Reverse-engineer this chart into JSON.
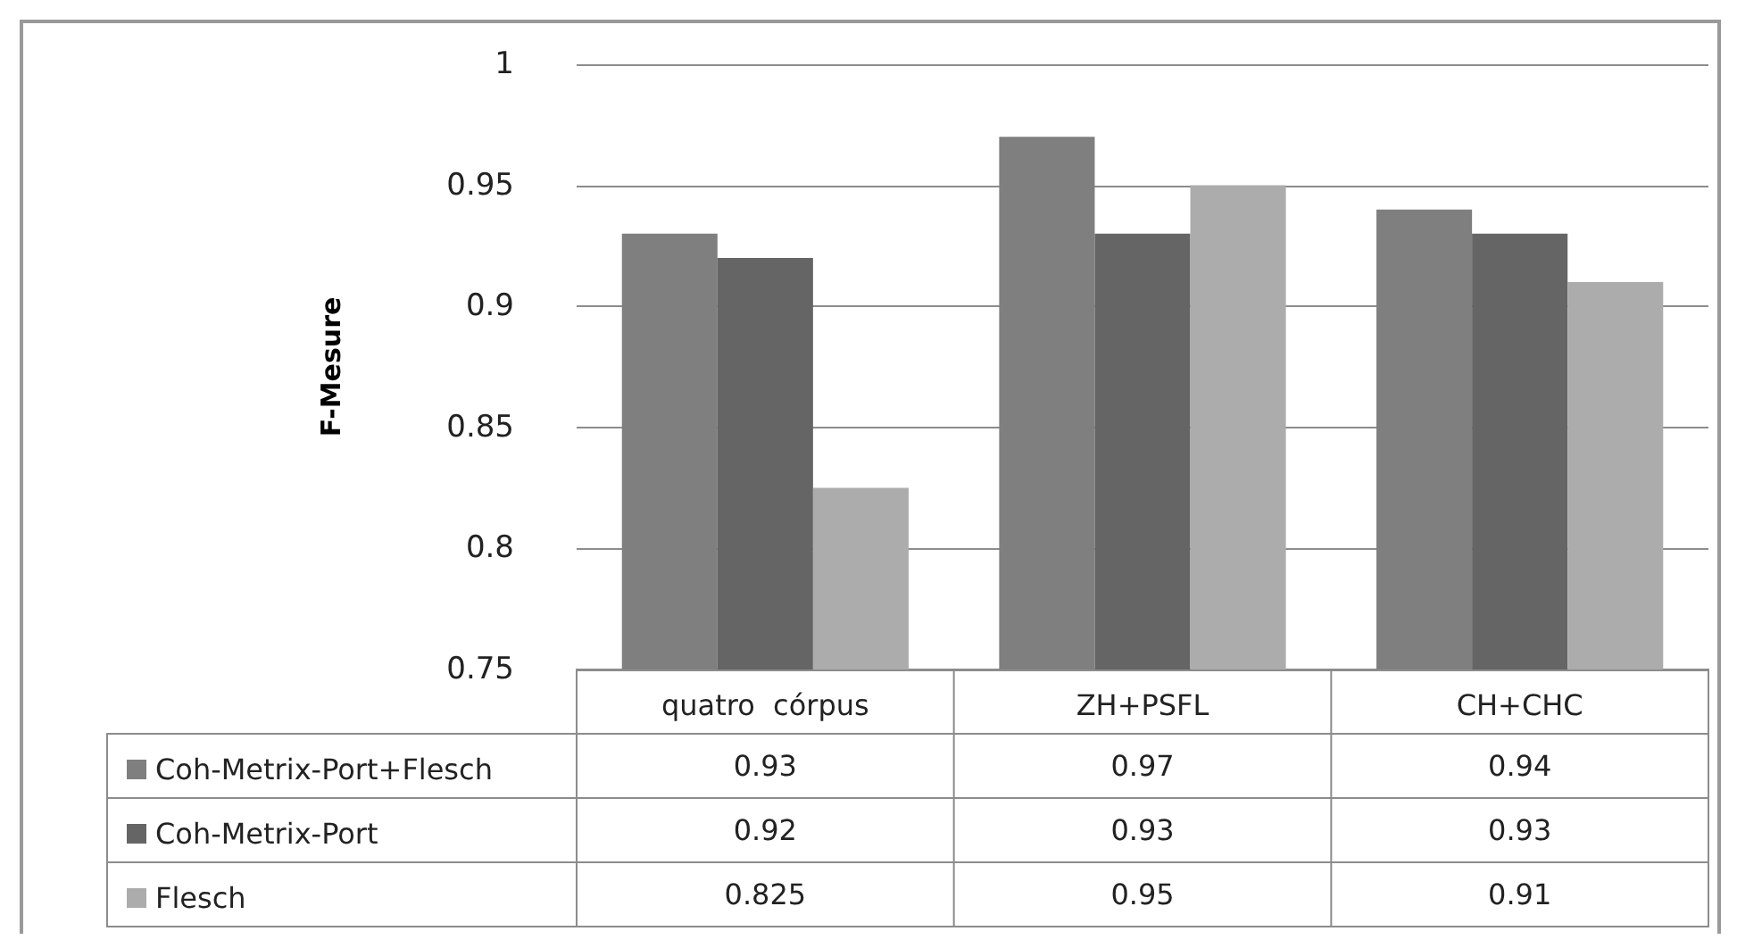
{
  "chart_data": {
    "type": "bar",
    "ylabel": "F-Mesure",
    "categories": [
      "quatro  córpus",
      "ZH+PSFL",
      "CH+CHC"
    ],
    "series": [
      {
        "name": "Coh-Metrix-Port+Flesch",
        "color": "#7f7f7f",
        "values": [
          0.93,
          0.97,
          0.94
        ]
      },
      {
        "name": "Coh-Metrix-Port",
        "color": "#656565",
        "values": [
          0.92,
          0.93,
          0.93
        ]
      },
      {
        "name": "Flesch",
        "color": "#acacac",
        "values": [
          0.825,
          0.95,
          0.91
        ]
      }
    ],
    "ylim": [
      0.75,
      1
    ],
    "yticks": [
      0.75,
      0.8,
      0.85,
      0.9,
      0.95,
      1
    ],
    "grid": "y",
    "legend": "bottom",
    "data_labels": true
  }
}
